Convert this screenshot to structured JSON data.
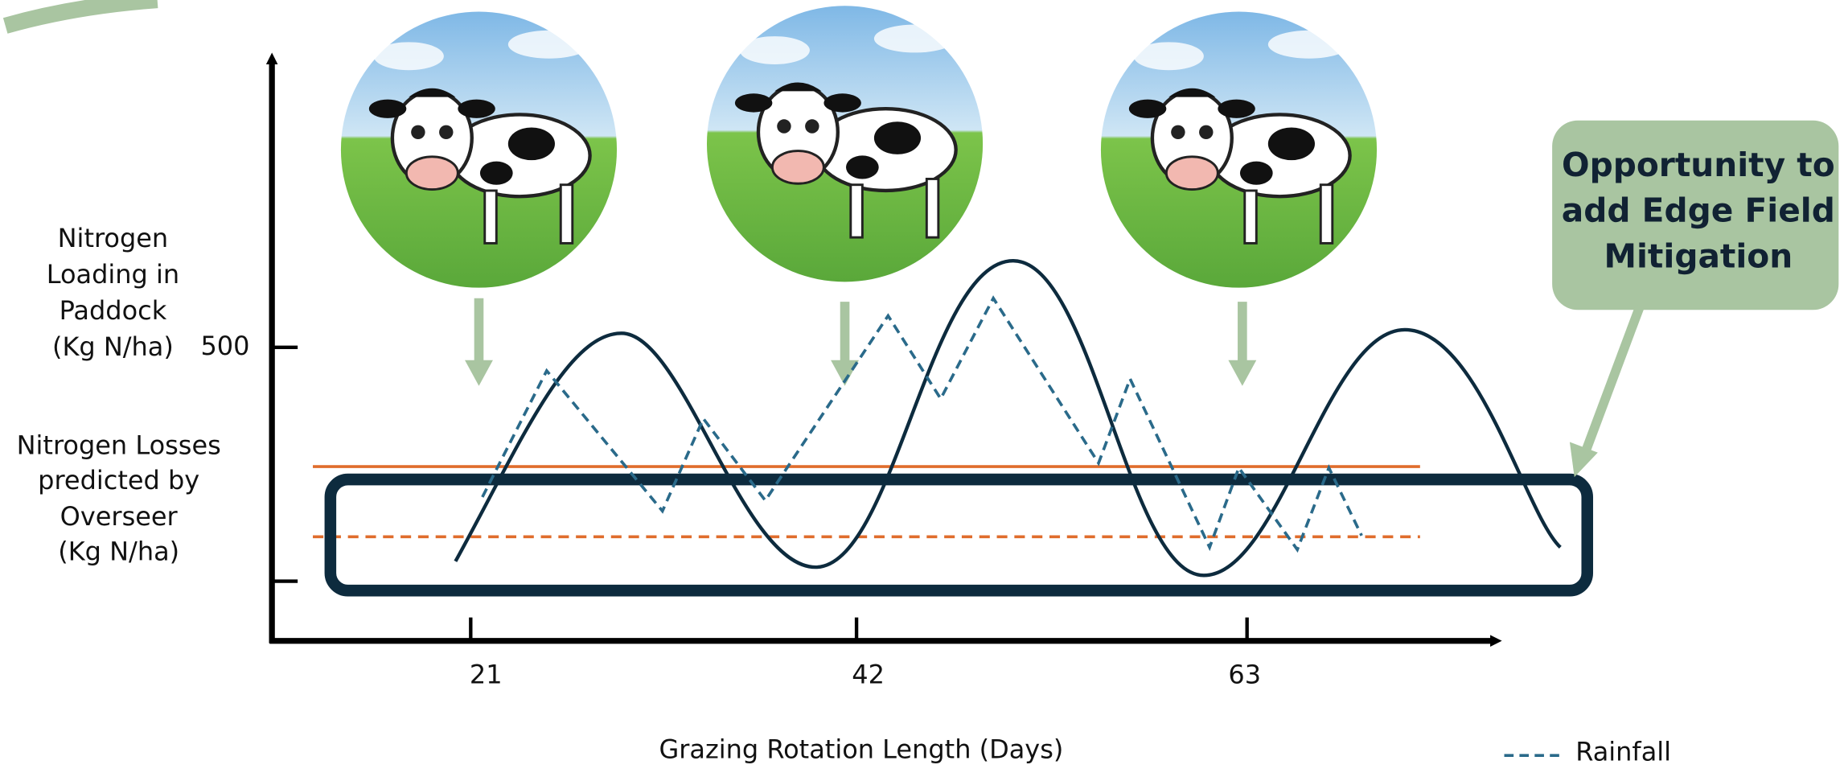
{
  "y_axis": {
    "label_lines": [
      "Nitrogen",
      "Loading in",
      "Paddock",
      "(Kg N/ha)"
    ],
    "tick_label": 500
  },
  "losses_label": {
    "lines": [
      "Nitrogen Losses",
      "predicted by",
      "Overseer",
      "(Kg N/ha)"
    ]
  },
  "x_axis": {
    "ticks": [
      21,
      42,
      63
    ],
    "label": "Grazing Rotation Length (Days)"
  },
  "legend": {
    "items": [
      {
        "label": "Rainfall"
      }
    ]
  },
  "callout": {
    "lines": [
      "Opportunity to",
      "add Edge Field",
      "Mitigation"
    ]
  }
}
